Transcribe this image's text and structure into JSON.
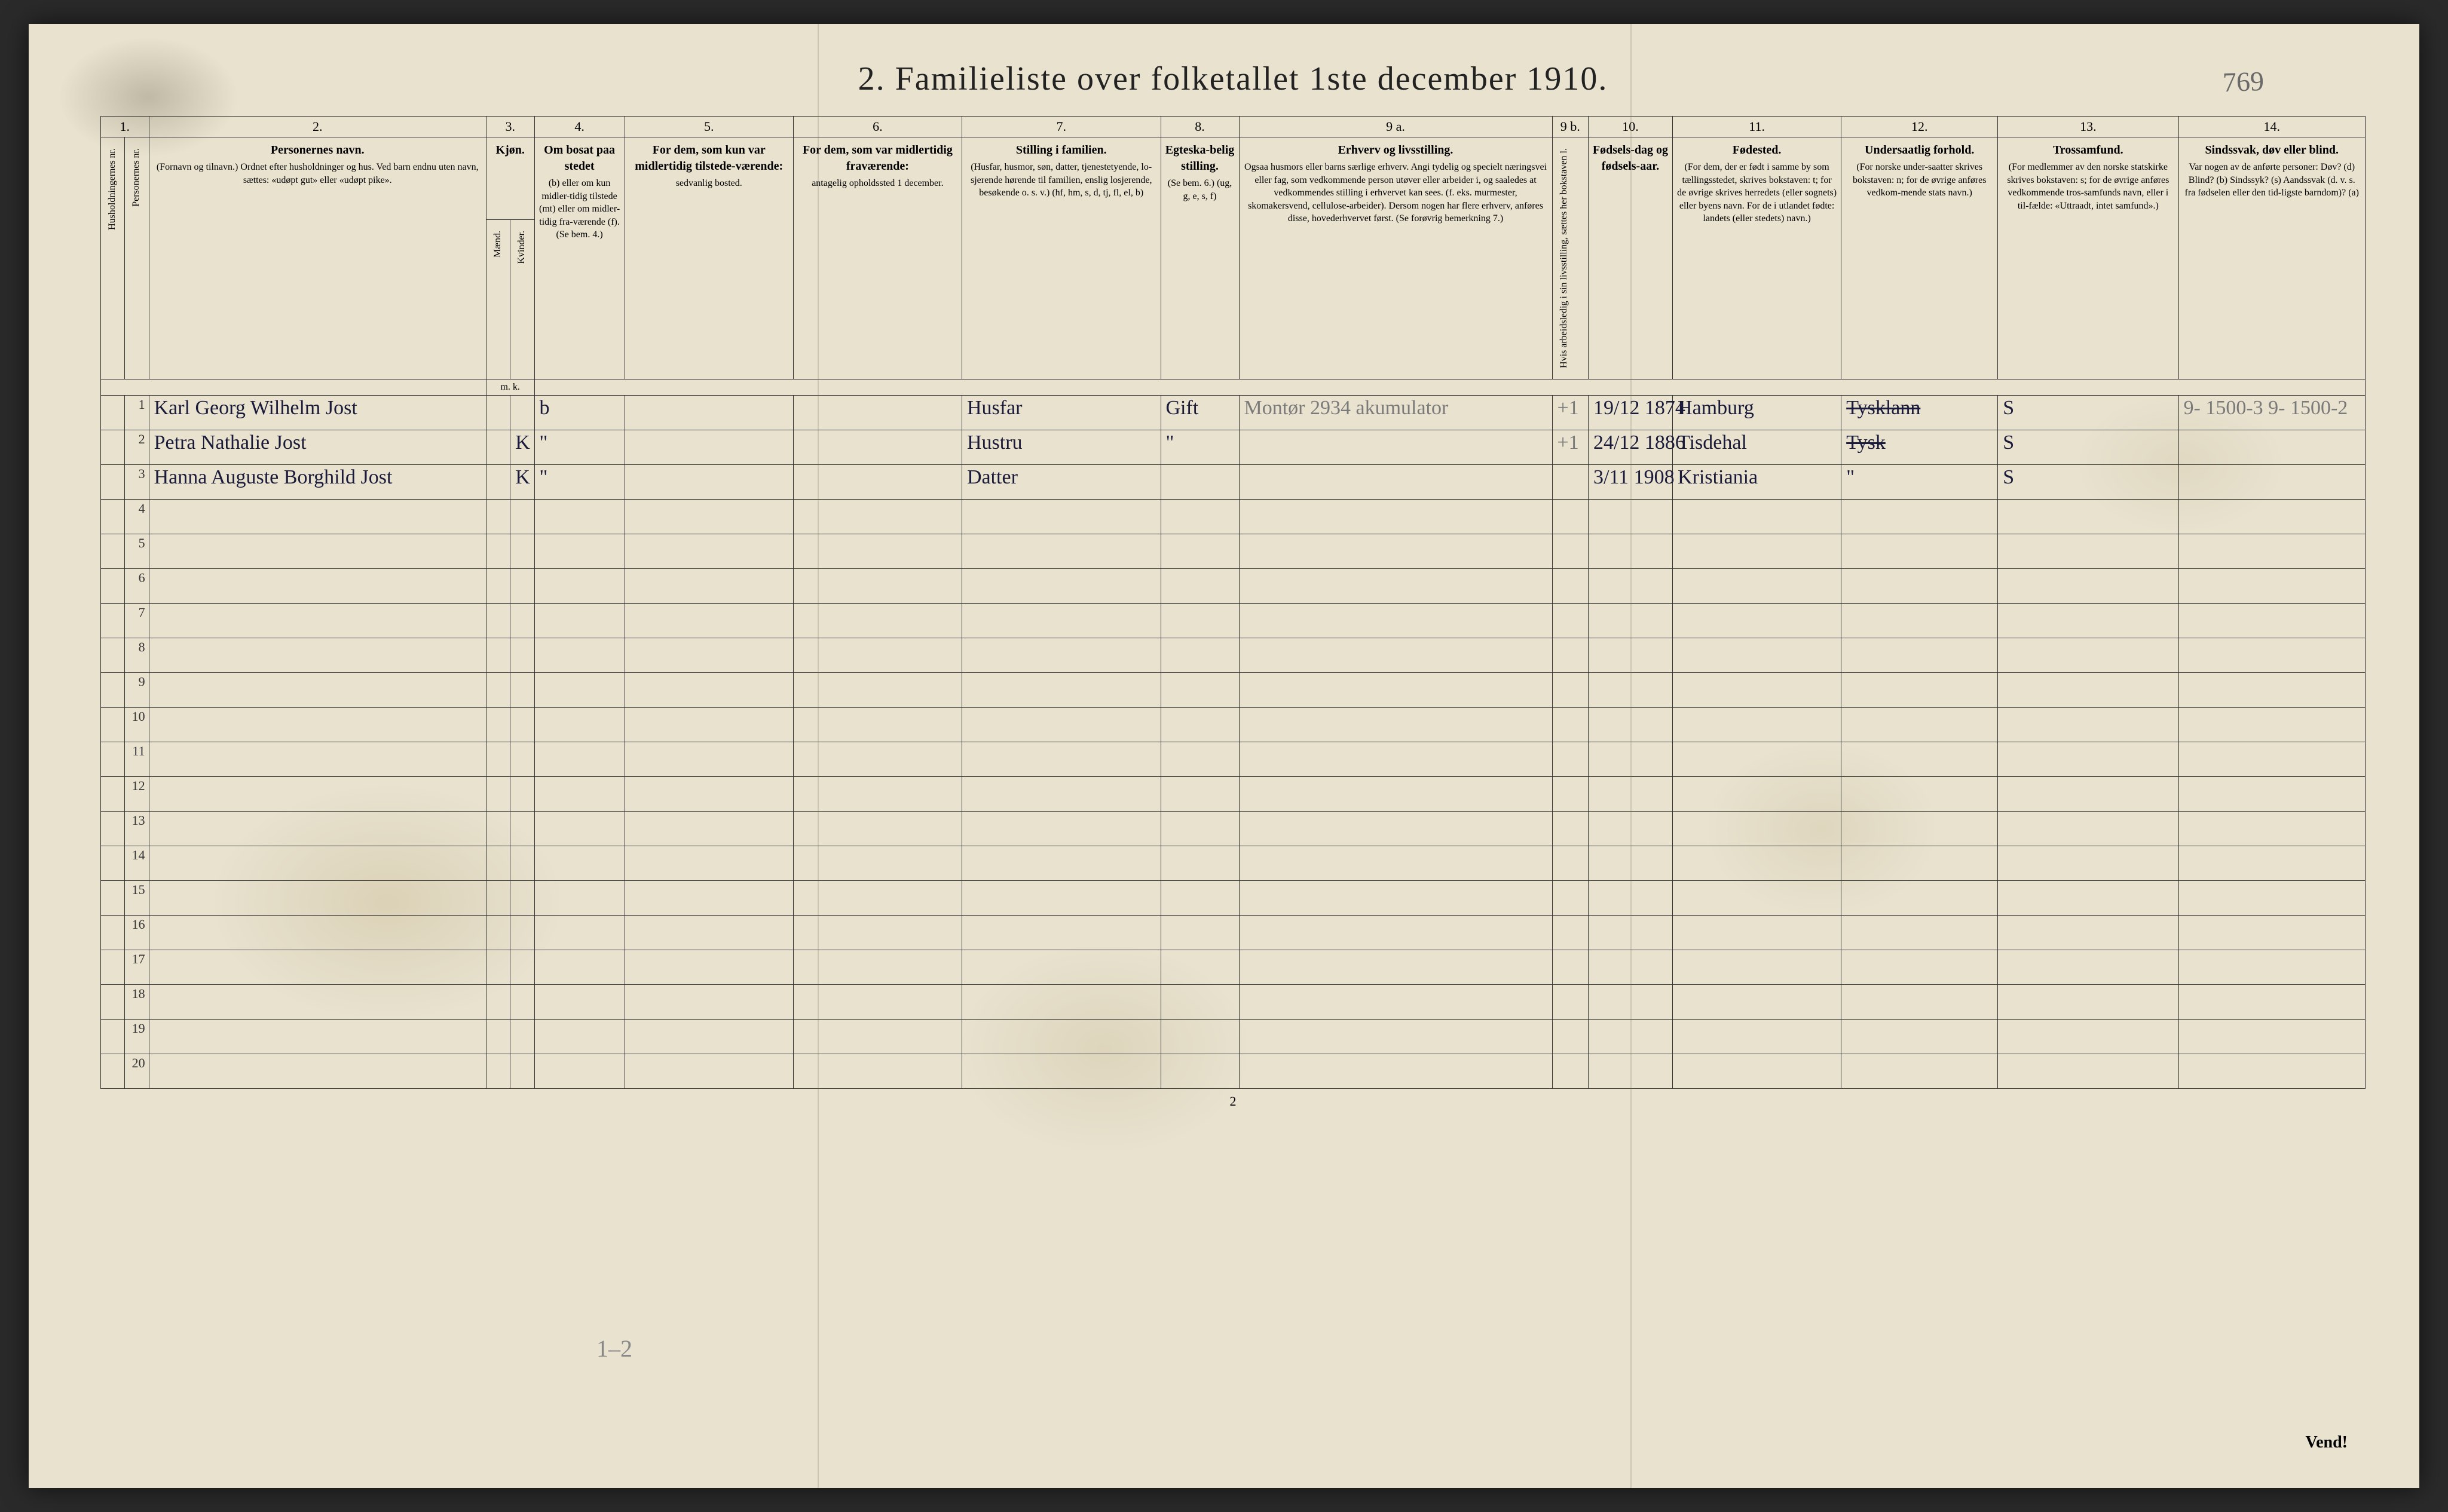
{
  "title": "2.  Familieliste over folketallet 1ste december 1910.",
  "handnote_topright": "769",
  "bottom_pencil": "1–2",
  "page_footnum": "2",
  "vend": "Vend!",
  "columns": {
    "c1": "1.",
    "c2": "2.",
    "c3": "3.",
    "c4": "4.",
    "c5": "5.",
    "c6": "6.",
    "c7": "7.",
    "c8": "8.",
    "c9a": "9 a.",
    "c9b": "9 b.",
    "c10": "10.",
    "c11": "11.",
    "c12": "12.",
    "c13": "13.",
    "c14": "14."
  },
  "headers": {
    "hush": "Husholdningernes nr.",
    "pers": "Personernes nr.",
    "navn_title": "Personernes navn.",
    "navn_sub": "(Fornavn og tilnavn.)\nOrdnet efter husholdninger og hus.\nVed barn endnu uten navn, sættes: «udøpt gut» eller «udøpt pike».",
    "kjon_title": "Kjøn.",
    "kjon_m": "Mænd.",
    "kjon_k": "Kvinder.",
    "kjon_mk": "m.  k.",
    "bosat_title": "Om bosat paa stedet",
    "bosat_sub": "(b) eller om kun midler-tidig tilstede (mt) eller om midler-tidig fra-værende (f). (Se bem. 4.)",
    "tilst_title": "For dem, som kun var midlertidig tilstede-værende:",
    "tilst_sub": "sedvanlig bosted.",
    "frav_title": "For dem, som var midlertidig fraværende:",
    "frav_sub": "antagelig opholdssted 1 december.",
    "stilling_title": "Stilling i familien.",
    "stilling_sub": "(Husfar, husmor, søn, datter, tjenestetyende, lo-sjerende hørende til familien, enslig losjerende, besøkende o. s. v.)\n(hf, hm, s, d, tj, fl, el, b)",
    "egte_title": "Egteska-belig stilling.",
    "egte_sub": "(Se bem. 6.)\n(ug, g, e, s, f)",
    "erhverv_title": "Erhverv og livsstilling.",
    "erhverv_sub": "Ogsaa husmors eller barns særlige erhverv. Angi tydelig og specielt næringsvei eller fag, som vedkommende person utøver eller arbeider i, og saaledes at vedkommendes stilling i erhvervet kan sees. (f. eks. murmester, skomakersvend, cellulose-arbeider). Dersom nogen har flere erhverv, anføres disse, hovederhvervet først.\n(Se forøvrig bemerkning 7.)",
    "arb": "Hvis arbeidsledig i sin livsstilling, sættes her bokstaven l.",
    "fodsel_title": "Fødsels-dag og fødsels-aar.",
    "fodested_title": "Fødested.",
    "fodested_sub": "(For dem, der er født i samme by som tællingsstedet, skrives bokstaven: t; for de øvrige skrives herredets (eller sognets) eller byens navn. For de i utlandet fødte: landets (eller stedets) navn.)",
    "under_title": "Undersaatlig forhold.",
    "under_sub": "(For norske under-saatter skrives bokstaven: n; for de øvrige anføres vedkom-mende stats navn.)",
    "tros_title": "Trossamfund.",
    "tros_sub": "(For medlemmer av den norske statskirke skrives bokstaven: s; for de øvrige anføres vedkommende tros-samfunds navn, eller i til-fælde: «Uttraadt, intet samfund».)",
    "sind_title": "Sindssvak, døv eller blind.",
    "sind_sub": "Var nogen av de anførte personer:\nDøv?      (d)\nBlind?    (b)\nSindssyk? (s)\nAandssvak (d. v. s. fra fødselen eller den tid-ligste barndom)? (a)"
  },
  "rows": [
    {
      "num": "1",
      "navn": "Karl Georg Wilhelm Jost",
      "kjon": "",
      "bosat": "b",
      "stilling": "Husfar",
      "egte": "Gift",
      "erhverv": "Montør  2934  akumulator",
      "arb": "+1",
      "fodsel": "19/12 1874",
      "fodested": "Hamburg",
      "under": "Tysklann",
      "tros": "S",
      "sind": "9- 1500-3  9- 1500-2"
    },
    {
      "num": "2",
      "navn": "Petra Nathalie Jost",
      "kjon": "K",
      "bosat": "\"",
      "stilling": "Hustru",
      "egte": "\"",
      "erhverv": "",
      "arb": "+1",
      "fodsel": "24/12 1886",
      "fodested": "Tisdehal",
      "under": "Tysk",
      "tros": "S",
      "sind": ""
    },
    {
      "num": "3",
      "navn": "Hanna Auguste Borghild Jost",
      "kjon": "K",
      "bosat": "\"",
      "stilling": "Datter",
      "egte": "",
      "erhverv": "",
      "arb": "",
      "fodsel": "3/11 1908",
      "fodested": "Kristiania",
      "under": "\"",
      "tros": "S",
      "sind": ""
    },
    {
      "num": "4"
    },
    {
      "num": "5"
    },
    {
      "num": "6"
    },
    {
      "num": "7"
    },
    {
      "num": "8"
    },
    {
      "num": "9"
    },
    {
      "num": "10"
    },
    {
      "num": "11"
    },
    {
      "num": "12"
    },
    {
      "num": "13"
    },
    {
      "num": "14"
    },
    {
      "num": "15"
    },
    {
      "num": "16"
    },
    {
      "num": "17"
    },
    {
      "num": "18"
    },
    {
      "num": "19"
    },
    {
      "num": "20"
    }
  ],
  "colwidths": {
    "hush": 40,
    "pers": 40,
    "navn": 560,
    "kjon_m": 40,
    "kjon_k": 40,
    "bosat": 150,
    "tilst": 280,
    "frav": 280,
    "stilling": 330,
    "egte": 130,
    "erhverv": 520,
    "arb": 60,
    "fodsel": 140,
    "fodested": 280,
    "under": 260,
    "tros": 300,
    "sind": 310
  },
  "colors": {
    "paper": "#e8e2cf",
    "ink": "#1a1a3a",
    "print": "#222",
    "pencil": "#7a7a7a",
    "border": "#333"
  }
}
